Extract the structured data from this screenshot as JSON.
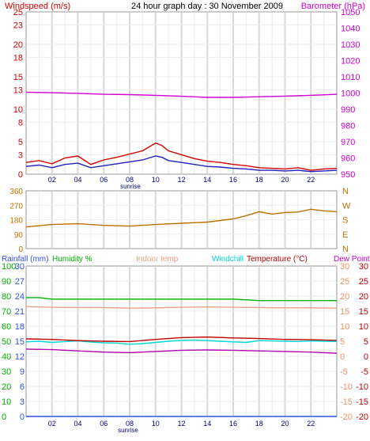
{
  "chart_data": [
    {
      "type": "line",
      "title": "24 hour graph day : 30 November 2009",
      "left_axis_label": "Windspeed (m/s)",
      "right_axis_label": "Barometer (hPa)",
      "x_ticks": [
        "02",
        "04",
        "06",
        "08",
        "10",
        "12",
        "14",
        "16",
        "18",
        "20",
        "22"
      ],
      "sunrise_label": "sunrise",
      "left_ticks": [
        0,
        3,
        5,
        8,
        10,
        13,
        15,
        18,
        20,
        23,
        25
      ],
      "left_range": [
        0,
        25
      ],
      "right_ticks": [
        950,
        960,
        970,
        980,
        990,
        1000,
        1010,
        1020,
        1030,
        1040,
        1050
      ],
      "right_range": [
        950,
        1050
      ],
      "series": [
        {
          "key": "gust",
          "color": "#d40000",
          "axis": "left",
          "x": [
            0,
            1,
            2,
            3,
            4,
            5,
            6,
            7,
            8,
            9,
            9.5,
            10,
            10.5,
            11,
            12,
            13,
            14,
            15,
            16,
            17,
            18,
            19,
            20,
            21,
            22,
            23,
            24
          ],
          "y": [
            1.8,
            2.1,
            1.6,
            2.5,
            2.8,
            1.5,
            2.2,
            2.6,
            3.1,
            3.6,
            4.2,
            4.8,
            4.4,
            3.6,
            3.0,
            2.4,
            2.0,
            1.8,
            1.5,
            1.3,
            1.0,
            0.9,
            0.8,
            1.0,
            0.6,
            0.8,
            0.9
          ]
        },
        {
          "key": "wind",
          "color": "#2020c0",
          "axis": "left",
          "x": [
            0,
            1,
            2,
            3,
            4,
            5,
            6,
            7,
            8,
            9,
            9.5,
            10,
            10.5,
            11,
            12,
            13,
            14,
            15,
            16,
            17,
            18,
            19,
            20,
            21,
            22,
            23,
            24
          ],
          "y": [
            1.2,
            1.4,
            1.0,
            1.5,
            1.7,
            1.0,
            1.3,
            1.6,
            1.9,
            2.2,
            2.5,
            2.8,
            2.6,
            2.1,
            1.8,
            1.5,
            1.2,
            1.1,
            0.9,
            0.8,
            0.6,
            0.6,
            0.5,
            0.6,
            0.4,
            0.5,
            0.6
          ]
        },
        {
          "key": "barometer",
          "color": "#d000d0",
          "axis": "right",
          "x": [
            0,
            2,
            4,
            6,
            8,
            10,
            12,
            14,
            16,
            18,
            20,
            22,
            24
          ],
          "y": [
            1000.5,
            1000.2,
            999.8,
            999.2,
            999.0,
            998.6,
            998.0,
            997.3,
            997.3,
            997.7,
            998.1,
            998.6,
            999.2
          ]
        }
      ]
    },
    {
      "type": "line",
      "left_ticks": [
        0,
        90,
        180,
        270,
        360
      ],
      "left_range": [
        0,
        360
      ],
      "right_labels": [
        "N",
        "W",
        "S",
        "E",
        "N"
      ],
      "x_ticks": [
        "02",
        "04",
        "06",
        "08",
        "10",
        "12",
        "14",
        "16",
        "18",
        "20",
        "22"
      ],
      "series": [
        {
          "key": "direction",
          "color": "#c07000",
          "x": [
            0,
            2,
            4,
            6,
            8,
            10,
            12,
            14,
            16,
            17,
            18,
            19,
            20,
            21,
            22,
            23,
            24
          ],
          "y": [
            135,
            150,
            155,
            145,
            140,
            150,
            158,
            165,
            185,
            205,
            230,
            215,
            225,
            228,
            245,
            235,
            230
          ]
        }
      ]
    },
    {
      "type": "line",
      "rainfall_label": "Rainfall (mm)",
      "humidity_label": "Humidity %",
      "indoor_label": "Indoor temp",
      "windchill_label": "Windchill",
      "temperature_label": "Temperature (°C)",
      "dewpoint_label": "Dew Point",
      "humidity_ticks": [
        0,
        10,
        20,
        30,
        40,
        50,
        60,
        70,
        80,
        90,
        100
      ],
      "rain_ticks": [
        0,
        3,
        6,
        9,
        12,
        15,
        18,
        21,
        24,
        27,
        30
      ],
      "temp_ticks_right1": [
        -20,
        -15,
        -10,
        -5,
        0,
        5,
        10,
        15,
        20,
        25,
        30
      ],
      "temp_ticks_right2": [
        -20,
        -15,
        -10,
        -5,
        0,
        5,
        10,
        15,
        20,
        25,
        30
      ],
      "temp_range": [
        -20,
        30
      ],
      "humidity_range": [
        0,
        100
      ],
      "rain_range": [
        0,
        30
      ],
      "x_ticks": [
        "02",
        "04",
        "06",
        "08",
        "10",
        "12",
        "14",
        "16",
        "18",
        "20",
        "22"
      ],
      "sunrise_label": "sunrise",
      "series": [
        {
          "key": "humidity",
          "color": "#00b000",
          "axis": "humidity",
          "x": [
            0,
            1,
            2,
            4,
            6,
            8,
            10,
            12,
            14,
            16,
            18,
            20,
            22,
            24
          ],
          "y": [
            79,
            79,
            78,
            78,
            78,
            78,
            78,
            78,
            78,
            78,
            77,
            77,
            77,
            77
          ]
        },
        {
          "key": "indoor",
          "color": "#f0a080",
          "axis": "temp",
          "x": [
            0,
            2,
            4,
            6,
            8,
            10,
            12,
            14,
            16,
            18,
            20,
            22,
            24
          ],
          "y": [
            16.5,
            16.3,
            16.2,
            16.2,
            16.0,
            16.1,
            16.3,
            16.4,
            16.3,
            16.2,
            16.1,
            16.1,
            16.0
          ]
        },
        {
          "key": "windchill",
          "color": "#00d8d8",
          "axis": "temp",
          "x": [
            0,
            1,
            2,
            3,
            4,
            5,
            6,
            7,
            8,
            9,
            10,
            11,
            12,
            13,
            14,
            15,
            16,
            17,
            18,
            19,
            20,
            21,
            22,
            23,
            24
          ],
          "y": [
            4.8,
            5.0,
            4.6,
            4.9,
            5.1,
            4.7,
            4.5,
            4.4,
            4.0,
            4.2,
            4.6,
            5.0,
            5.3,
            5.4,
            5.2,
            5.0,
            4.8,
            4.6,
            5.2,
            5.1,
            5.0,
            4.9,
            5.1,
            5.0,
            4.9
          ]
        },
        {
          "key": "temperature",
          "color": "#c00000",
          "axis": "temp",
          "x": [
            0,
            2,
            4,
            6,
            8,
            10,
            12,
            14,
            16,
            18,
            20,
            22,
            24
          ],
          "y": [
            5.8,
            5.6,
            5.2,
            5.0,
            4.9,
            5.6,
            6.2,
            6.4,
            6.1,
            5.9,
            5.6,
            5.5,
            5.3
          ]
        },
        {
          "key": "dewpoint",
          "color": "#b000b0",
          "axis": "temp",
          "x": [
            0,
            2,
            4,
            6,
            8,
            10,
            12,
            14,
            16,
            18,
            20,
            22,
            24
          ],
          "y": [
            2.4,
            2.2,
            1.8,
            1.4,
            1.2,
            1.6,
            2.0,
            2.1,
            2.0,
            1.8,
            1.6,
            1.4,
            1.0
          ]
        },
        {
          "key": "rain",
          "color": "#3050e0",
          "axis": "rain",
          "x": [
            0,
            24
          ],
          "y": [
            0,
            0
          ]
        }
      ]
    }
  ],
  "colors": {
    "windspeed_label": "#d40000",
    "barometer_label": "#d000d0",
    "left_ticks1": "#d40000",
    "right_ticks1": "#d000d0",
    "dir_ticks": "#c07000",
    "rainfall": "#3050e0",
    "humidity": "#00b000",
    "indoor": "#f0a080",
    "windchill": "#00d8d8",
    "temperature": "#c00000",
    "dewpoint": "#b000b0",
    "humidity_ticks": "#00b000",
    "rain_ticks": "#3050e0",
    "temp_ticks_right1": "#f09060",
    "temp_ticks_right2": "#c00000",
    "x_ticks": "#000080",
    "sunrise": "#000080"
  }
}
